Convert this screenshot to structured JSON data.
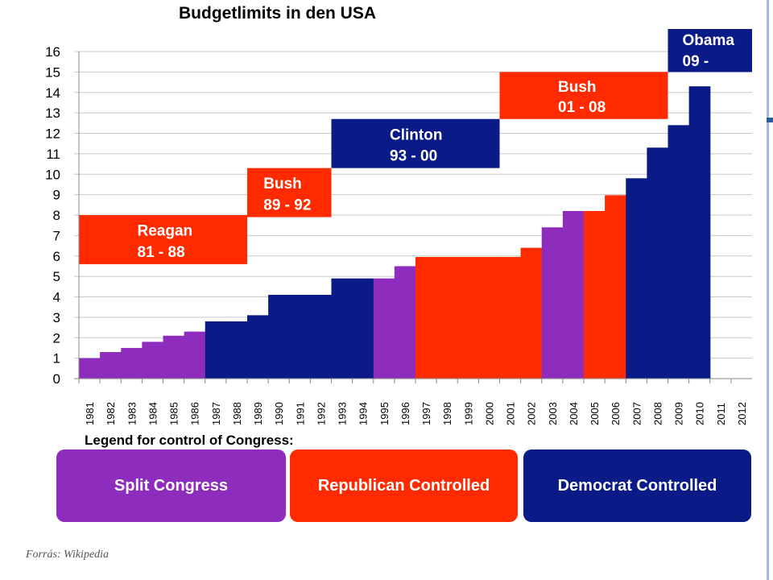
{
  "title": "Budgetlimits in den USA",
  "colors": {
    "split": "#8e2cbd",
    "republican": "#ff2a00",
    "democrat": "#0a1a87",
    "grid": "#c8c8c8"
  },
  "chart_data": {
    "type": "bar",
    "title": "Budgetlimits in den USA",
    "ylim": [
      0,
      16
    ],
    "yticks": [
      "0",
      "1",
      "2",
      "3",
      "4",
      "5",
      "6",
      "7",
      "8",
      "9",
      "10",
      "11",
      "12",
      "13",
      "14",
      "15",
      "16"
    ],
    "grid": true,
    "categories": [
      "1981",
      "1982",
      "1983",
      "1984",
      "1985",
      "1986",
      "1987",
      "1988",
      "1989",
      "1990",
      "1991",
      "1992",
      "1993",
      "1994",
      "1995",
      "1996",
      "1997",
      "1998",
      "1999",
      "2000",
      "2001",
      "2002",
      "2003",
      "2004",
      "2005",
      "2006",
      "2007",
      "2008",
      "2009",
      "2010",
      "2011",
      "2012"
    ],
    "values": [
      1.0,
      1.3,
      1.5,
      1.8,
      2.1,
      2.3,
      2.8,
      2.8,
      3.1,
      4.1,
      4.1,
      4.1,
      4.9,
      4.9,
      4.9,
      5.5,
      5.95,
      5.95,
      5.95,
      5.95,
      5.95,
      6.4,
      7.4,
      8.2,
      8.2,
      8.97,
      9.8,
      11.3,
      12.4,
      14.3,
      null,
      null
    ],
    "congress": [
      "split",
      "split",
      "split",
      "split",
      "split",
      "split",
      "democrat",
      "democrat",
      "democrat",
      "democrat",
      "democrat",
      "democrat",
      "democrat",
      "democrat",
      "split",
      "split",
      "republican",
      "republican",
      "republican",
      "republican",
      "republican",
      "republican",
      "split",
      "split",
      "republican",
      "republican",
      "democrat",
      "democrat",
      "democrat",
      "democrat",
      "",
      ""
    ],
    "presidents": [
      {
        "name": "Reagan",
        "years": "81 - 88",
        "party": "republican",
        "from": 0,
        "to": 8,
        "ybottom": 5.6,
        "ytop": 8.0
      },
      {
        "name": "Bush",
        "years": "89 - 92",
        "party": "republican",
        "from": 8,
        "to": 12,
        "ybottom": 7.9,
        "ytop": 10.3
      },
      {
        "name": "Clinton",
        "years": "93 - 00",
        "party": "democrat",
        "from": 12,
        "to": 20,
        "ybottom": 10.3,
        "ytop": 12.7
      },
      {
        "name": "Bush",
        "years": "01 - 08",
        "party": "republican",
        "from": 20,
        "to": 28,
        "ybottom": 12.7,
        "ytop": 15.0
      },
      {
        "name": "Obama",
        "years": "09 -",
        "party": "democrat",
        "from": 28,
        "to": 32,
        "ybottom": 15.0,
        "ytop": 17.3
      }
    ]
  },
  "legend": {
    "title": "Legend for control of Congress:",
    "items": [
      {
        "label": "Split Congress",
        "key": "split"
      },
      {
        "label": "Republican Controlled",
        "key": "republican"
      },
      {
        "label": "Democrat Controlled",
        "key": "democrat"
      }
    ]
  },
  "source": "Forrás: Wikipedia"
}
